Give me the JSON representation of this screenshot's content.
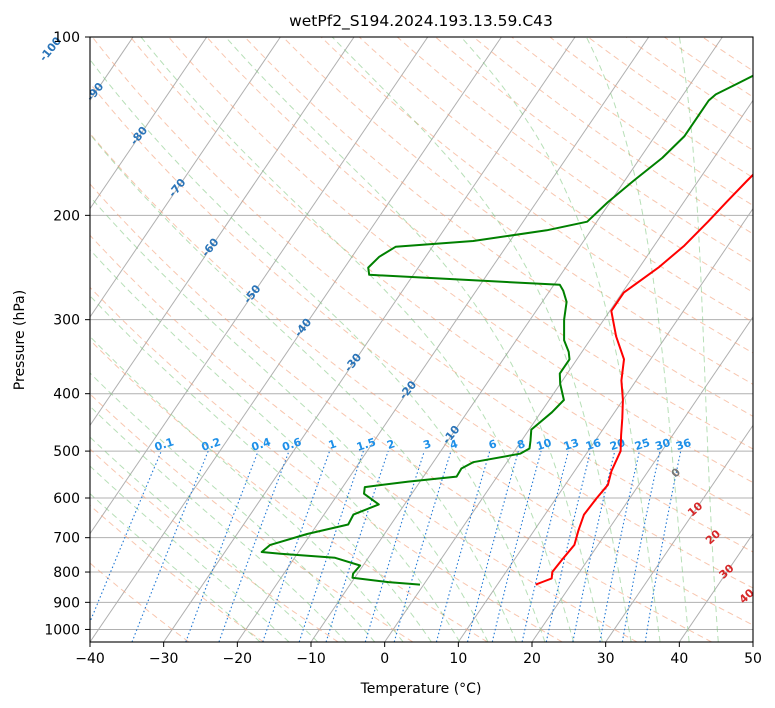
{
  "chart_data": {
    "type": "skew-t",
    "title": "wetPf2_S194.2024.193.13.59.C43",
    "xlabel": "Temperature (°C)",
    "ylabel": "Pressure (hPa)",
    "xlim": [
      -40,
      50
    ],
    "ylim": [
      1050,
      100
    ],
    "y_scale": "log",
    "x_ticks": [
      -40,
      -30,
      -20,
      -10,
      0,
      10,
      20,
      30,
      40,
      50
    ],
    "y_ticks": [
      100,
      200,
      300,
      400,
      500,
      600,
      700,
      800,
      900,
      1000
    ],
    "grid": true,
    "series": [
      {
        "color": "#ff0000",
        "points": [
          [
            15.2,
            840
          ],
          [
            16,
            830
          ],
          [
            16.8,
            820
          ],
          [
            16.3,
            800
          ],
          [
            16.5,
            760
          ],
          [
            16.8,
            720
          ],
          [
            16,
            680
          ],
          [
            15.3,
            640
          ],
          [
            15.5,
            600
          ],
          [
            15.8,
            570
          ],
          [
            15,
            540
          ],
          [
            14.4,
            500
          ],
          [
            13,
            470
          ],
          [
            11.6,
            440
          ],
          [
            10,
            410
          ],
          [
            8,
            380
          ],
          [
            6.4,
            350
          ],
          [
            3.2,
            320
          ],
          [
            0.2,
            290
          ],
          [
            0.2,
            270
          ],
          [
            2.6,
            245
          ],
          [
            4.1,
            225
          ],
          [
            5.1,
            205
          ],
          [
            5.8,
            190
          ],
          [
            6.6,
            175
          ],
          [
            7.6,
            160
          ],
          [
            8.5,
            150
          ],
          [
            9.4,
            140
          ],
          [
            11,
            130
          ],
          [
            12.5,
            120
          ],
          [
            14.5,
            112
          ],
          [
            16.7,
            105
          ],
          [
            18,
            100
          ]
        ]
      },
      {
        "color": "#008000",
        "points": [
          [
            -0.5,
            840
          ],
          [
            -5,
            832
          ],
          [
            -10.3,
            818
          ],
          [
            -10.6,
            805
          ],
          [
            -10.4,
            780
          ],
          [
            -14.5,
            757
          ],
          [
            -22.3,
            745
          ],
          [
            -25,
            740
          ],
          [
            -24.5,
            720
          ],
          [
            -20.5,
            690
          ],
          [
            -15.8,
            665
          ],
          [
            -16,
            640
          ],
          [
            -13.5,
            615
          ],
          [
            -16.5,
            590
          ],
          [
            -17,
            575
          ],
          [
            -11.6,
            563
          ],
          [
            -5.5,
            552
          ],
          [
            -5.6,
            535
          ],
          [
            -4.6,
            522
          ],
          [
            1,
            505
          ],
          [
            1.8,
            495
          ],
          [
            1.2,
            480
          ],
          [
            0.3,
            460
          ],
          [
            1.5,
            430
          ],
          [
            2,
            410
          ],
          [
            0,
            385
          ],
          [
            -1,
            370
          ],
          [
            -1,
            350
          ],
          [
            -1.8,
            340
          ],
          [
            -3.5,
            325
          ],
          [
            -5.4,
            300
          ],
          [
            -6.7,
            280
          ],
          [
            -8.2,
            268
          ],
          [
            -9.2,
            262
          ],
          [
            -36,
            252
          ],
          [
            -36.8,
            245
          ],
          [
            -36.3,
            235
          ],
          [
            -35,
            226
          ],
          [
            -25,
            221
          ],
          [
            -16,
            212
          ],
          [
            -11.3,
            205
          ],
          [
            -10.3,
            190
          ],
          [
            -8.8,
            175
          ],
          [
            -7,
            160
          ],
          [
            -6,
            147
          ],
          [
            -6,
            135
          ],
          [
            -6,
            128
          ],
          [
            -5.6,
            125
          ],
          [
            -3.7,
            120
          ],
          [
            -1.4,
            114
          ],
          [
            -0.2,
            108
          ],
          [
            0.7,
            102
          ],
          [
            1.2,
            100
          ]
        ]
      }
    ],
    "isotherm_labels": [
      -100,
      -90,
      -80,
      -70,
      -60,
      -50,
      -40,
      -30,
      -20,
      -10
    ],
    "mixing_ratio_labels": [
      "0.1",
      "0.2",
      "0.4",
      "0.6",
      "1",
      "1.5",
      "2",
      "3",
      "4",
      "6",
      "8",
      "10",
      "13",
      "16",
      "20",
      "25",
      "30",
      "36"
    ],
    "moist_adiabat_labels": [
      "0",
      "10",
      "20",
      "30",
      "40"
    ]
  }
}
